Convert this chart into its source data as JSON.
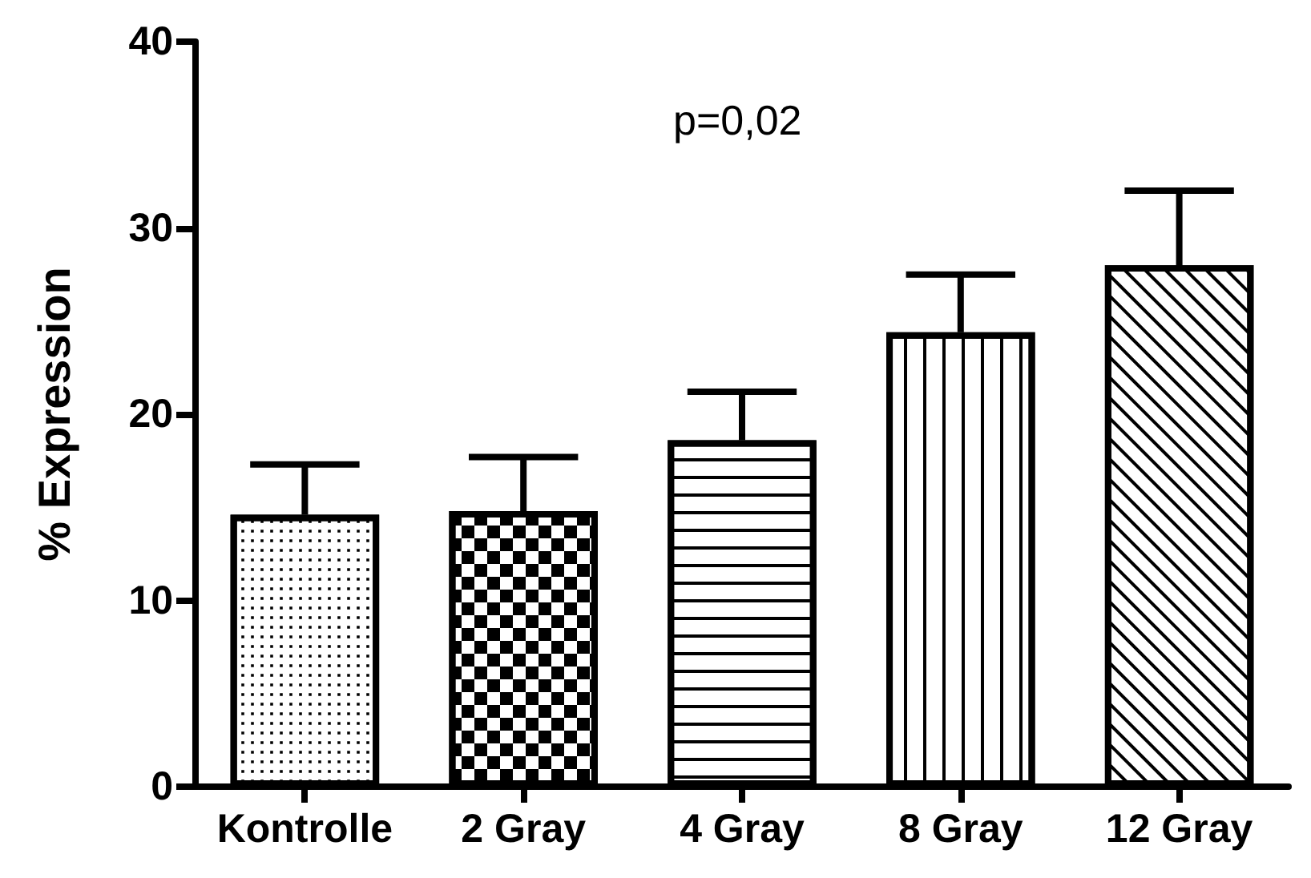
{
  "chart_data": {
    "type": "bar",
    "ylabel": "% Expression",
    "annotations": [
      "p=0,02"
    ],
    "categories": [
      "Kontrolle",
      "2 Gray",
      "4 Gray",
      "8 Gray",
      "12 Gray"
    ],
    "values": [
      14.6,
      14.8,
      18.6,
      24.4,
      28.0
    ],
    "errors": [
      [
        14.6,
        17.3
      ],
      [
        14.8,
        17.7
      ],
      [
        18.6,
        21.2
      ],
      [
        24.4,
        27.5
      ],
      [
        28.0,
        32.0
      ]
    ],
    "colors": [
      "#000000",
      "#000000",
      "#000000",
      "#000000",
      "#000000"
    ],
    "ylim": [
      0,
      40
    ],
    "yticks": [
      0,
      10,
      20,
      30,
      40
    ],
    "grid": false
  }
}
